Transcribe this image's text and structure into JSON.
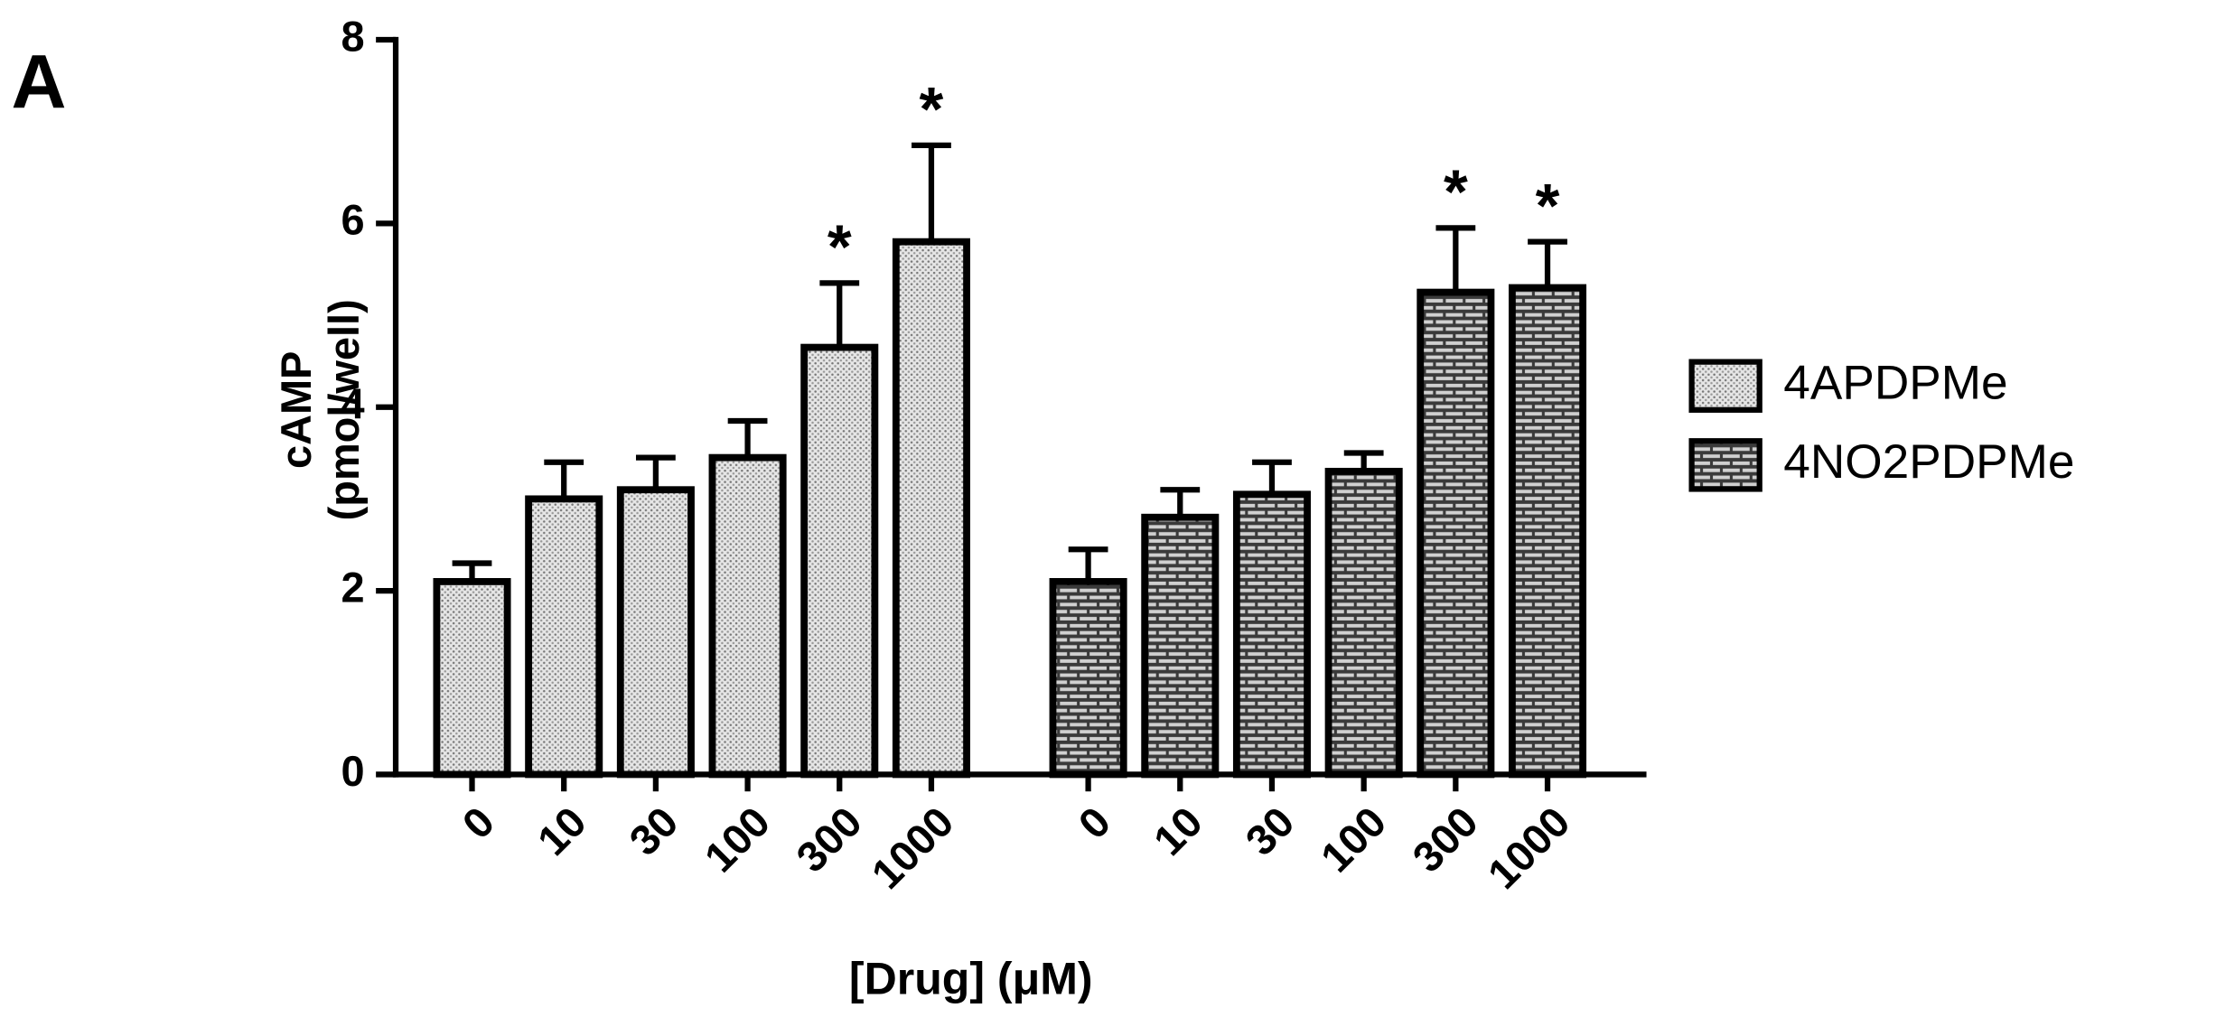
{
  "chart_data": {
    "type": "bar",
    "panel_label": "A",
    "ylabel": [
      "cAMP",
      "(pmol/well)"
    ],
    "xlabel": "[Drug] (μM)",
    "categories": [
      "0",
      "10",
      "30",
      "100",
      "300",
      "1000"
    ],
    "series": [
      {
        "name": "4APDPMe",
        "color": "#d8d8d8",
        "pattern": "dots",
        "values": [
          2.1,
          3.0,
          3.1,
          3.45,
          4.65,
          5.8
        ],
        "errors": [
          0.2,
          0.4,
          0.35,
          0.4,
          0.7,
          1.05
        ]
      },
      {
        "name": "4NO2PDPMe",
        "color": "#3a3a3a",
        "pattern": "bricks",
        "values": [
          2.1,
          2.8,
          3.05,
          3.3,
          5.25,
          5.3
        ],
        "errors": [
          0.35,
          0.3,
          0.35,
          0.2,
          0.7,
          0.5
        ]
      }
    ],
    "annotations": [
      {
        "text": "*",
        "series": 0,
        "index": 4
      },
      {
        "text": "*",
        "series": 0,
        "index": 5
      },
      {
        "text": "*",
        "series": 1,
        "index": 4
      },
      {
        "text": "*",
        "series": 1,
        "index": 5
      }
    ],
    "ylim": [
      0,
      8
    ],
    "yticks": [
      0,
      2,
      4,
      6,
      8
    ],
    "legend": "right"
  }
}
